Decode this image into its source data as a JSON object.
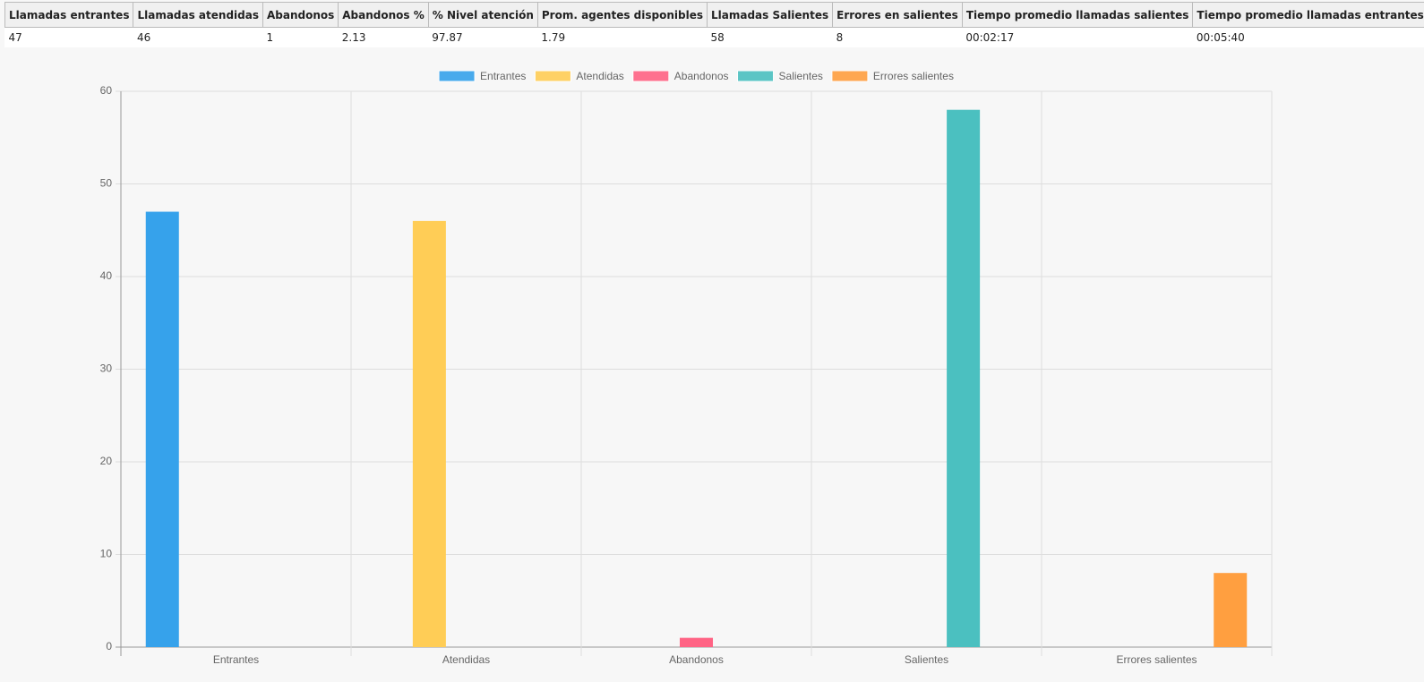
{
  "table": {
    "headers": [
      "Llamadas entrantes",
      "Llamadas atendidas",
      "Abandonos",
      "Abandonos %",
      "% Nivel atención",
      "Prom. agentes disponibles",
      "Llamadas Salientes",
      "Errores en salientes",
      "Tiempo promedio llamadas salientes",
      "Tiempo promedio llamadas entrantes"
    ],
    "rows": [
      [
        "47",
        "46",
        "1",
        "2.13",
        "97.87",
        "1.79",
        "58",
        "8",
        "00:02:17",
        "00:05:40"
      ]
    ]
  },
  "chart_data": {
    "type": "bar",
    "categories": [
      "Entrantes",
      "Atendidas",
      "Abandonos",
      "Salientes",
      "Errores salientes"
    ],
    "series": [
      {
        "name": "Entrantes",
        "color": "#36a2eb",
        "values": [
          47,
          null,
          null,
          null,
          null
        ]
      },
      {
        "name": "Atendidas",
        "color": "#ffcd56",
        "values": [
          null,
          46,
          null,
          null,
          null
        ]
      },
      {
        "name": "Abandonos",
        "color": "#ff6384",
        "values": [
          null,
          null,
          1,
          null,
          null
        ]
      },
      {
        "name": "Salientes",
        "color": "#4bc0c0",
        "values": [
          null,
          null,
          null,
          58,
          null
        ]
      },
      {
        "name": "Errores salientes",
        "color": "#ff9f40",
        "values": [
          null,
          null,
          null,
          null,
          8
        ]
      }
    ],
    "ylim": [
      0,
      60
    ],
    "yticks": [
      0,
      10,
      20,
      30,
      40,
      50,
      60
    ],
    "grid": true,
    "legend": "top"
  }
}
